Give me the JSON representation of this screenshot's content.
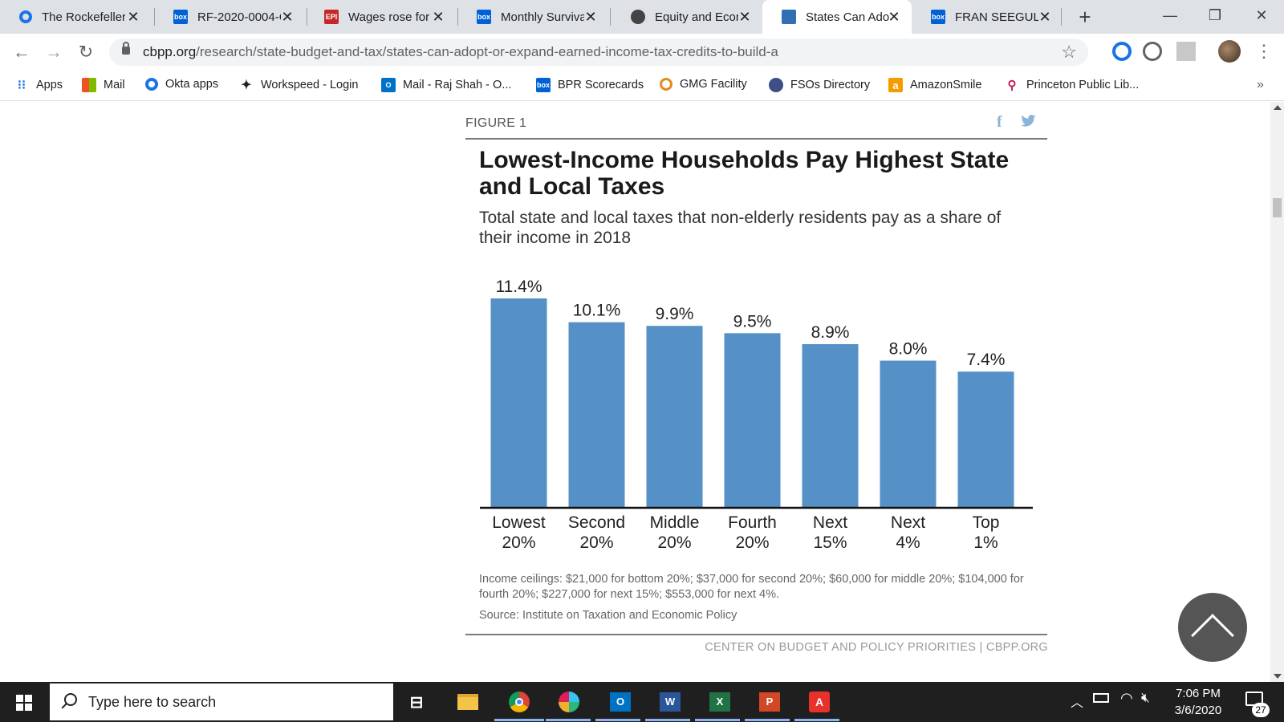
{
  "browser": {
    "tabs": [
      {
        "title": "The Rockefeller",
        "icon": "okta-circle-icon",
        "color": "#1a73e8"
      },
      {
        "title": "RF-2020-0004-C",
        "icon": "box-icon",
        "color": "#0061d5"
      },
      {
        "title": "Wages rose for",
        "icon": "epi-icon",
        "color": "#c62828"
      },
      {
        "title": "Monthly Surviva",
        "icon": "box-icon",
        "color": "#0061d5"
      },
      {
        "title": "Equity and Econ",
        "icon": "globe-icon",
        "color": "#444444"
      },
      {
        "title": "States Can Adop",
        "icon": "cbpp-icon",
        "color": "#2f6fb3",
        "active": true
      },
      {
        "title": "FRAN SEEGULL",
        "icon": "box-icon",
        "color": "#0061d5"
      }
    ],
    "url_host": "cbpp.org",
    "url_path": "/research/state-budget-and-tax/states-can-adopt-or-expand-earned-income-tax-credits-to-build-a",
    "bookmarks": [
      {
        "label": "Apps",
        "icon": "apps-grid-icon"
      },
      {
        "label": "Mail",
        "icon": "microsoft-icon"
      },
      {
        "label": "Okta apps",
        "icon": "okta-circle-icon"
      },
      {
        "label": "Workspeed - Login",
        "icon": "workspeed-icon"
      },
      {
        "label": "Mail - Raj Shah - O...",
        "icon": "outlook-icon"
      },
      {
        "label": "BPR Scorecards",
        "icon": "box-icon"
      },
      {
        "label": "GMG Facility",
        "icon": "gmg-icon"
      },
      {
        "label": "FSOs Directory",
        "icon": "seal-icon"
      },
      {
        "label": "AmazonSmile",
        "icon": "amazon-icon"
      },
      {
        "label": "Princeton Public Lib...",
        "icon": "library-icon"
      }
    ]
  },
  "article": {
    "figure_label": "FIGURE 1",
    "title": "Lowest-Income Households Pay Highest State and Local Taxes",
    "subtitle": "Total state and local taxes that non-elderly residents pay as a share of their income in 2018",
    "notes": "Income ceilings: $21,000 for bottom 20%; $37,000 for second 20%; $60,000 for middle 20%; $104,000 for fourth 20%; $227,000 for next 15%; $553,000 for next 4%.",
    "source": "Source: Institute on Taxation and Economic Policy",
    "credit": "CENTER ON BUDGET AND POLICY PRIORITIES | CBPP.ORG"
  },
  "chart_data": {
    "type": "bar",
    "categories": [
      [
        "Lowest",
        "20%"
      ],
      [
        "Second",
        "20%"
      ],
      [
        "Middle",
        "20%"
      ],
      [
        "Fourth",
        "20%"
      ],
      [
        "Next",
        "15%"
      ],
      [
        "Next",
        "4%"
      ],
      [
        "Top",
        "1%"
      ]
    ],
    "values": [
      11.4,
      10.1,
      9.9,
      9.5,
      8.9,
      8.0,
      7.4
    ],
    "value_labels": [
      "11.4%",
      "10.1%",
      "9.9%",
      "9.5%",
      "8.9%",
      "8.0%",
      "7.4%"
    ],
    "title": "Lowest-Income Households Pay Highest State and Local Taxes",
    "xlabel": "",
    "ylabel": "",
    "ylim": [
      0,
      11.4
    ],
    "grid": false,
    "bar_color": "#5591c6"
  },
  "taskbar": {
    "search_placeholder": "Type here to search",
    "time": "7:06 PM",
    "date": "3/6/2020",
    "notification_count": "27"
  }
}
